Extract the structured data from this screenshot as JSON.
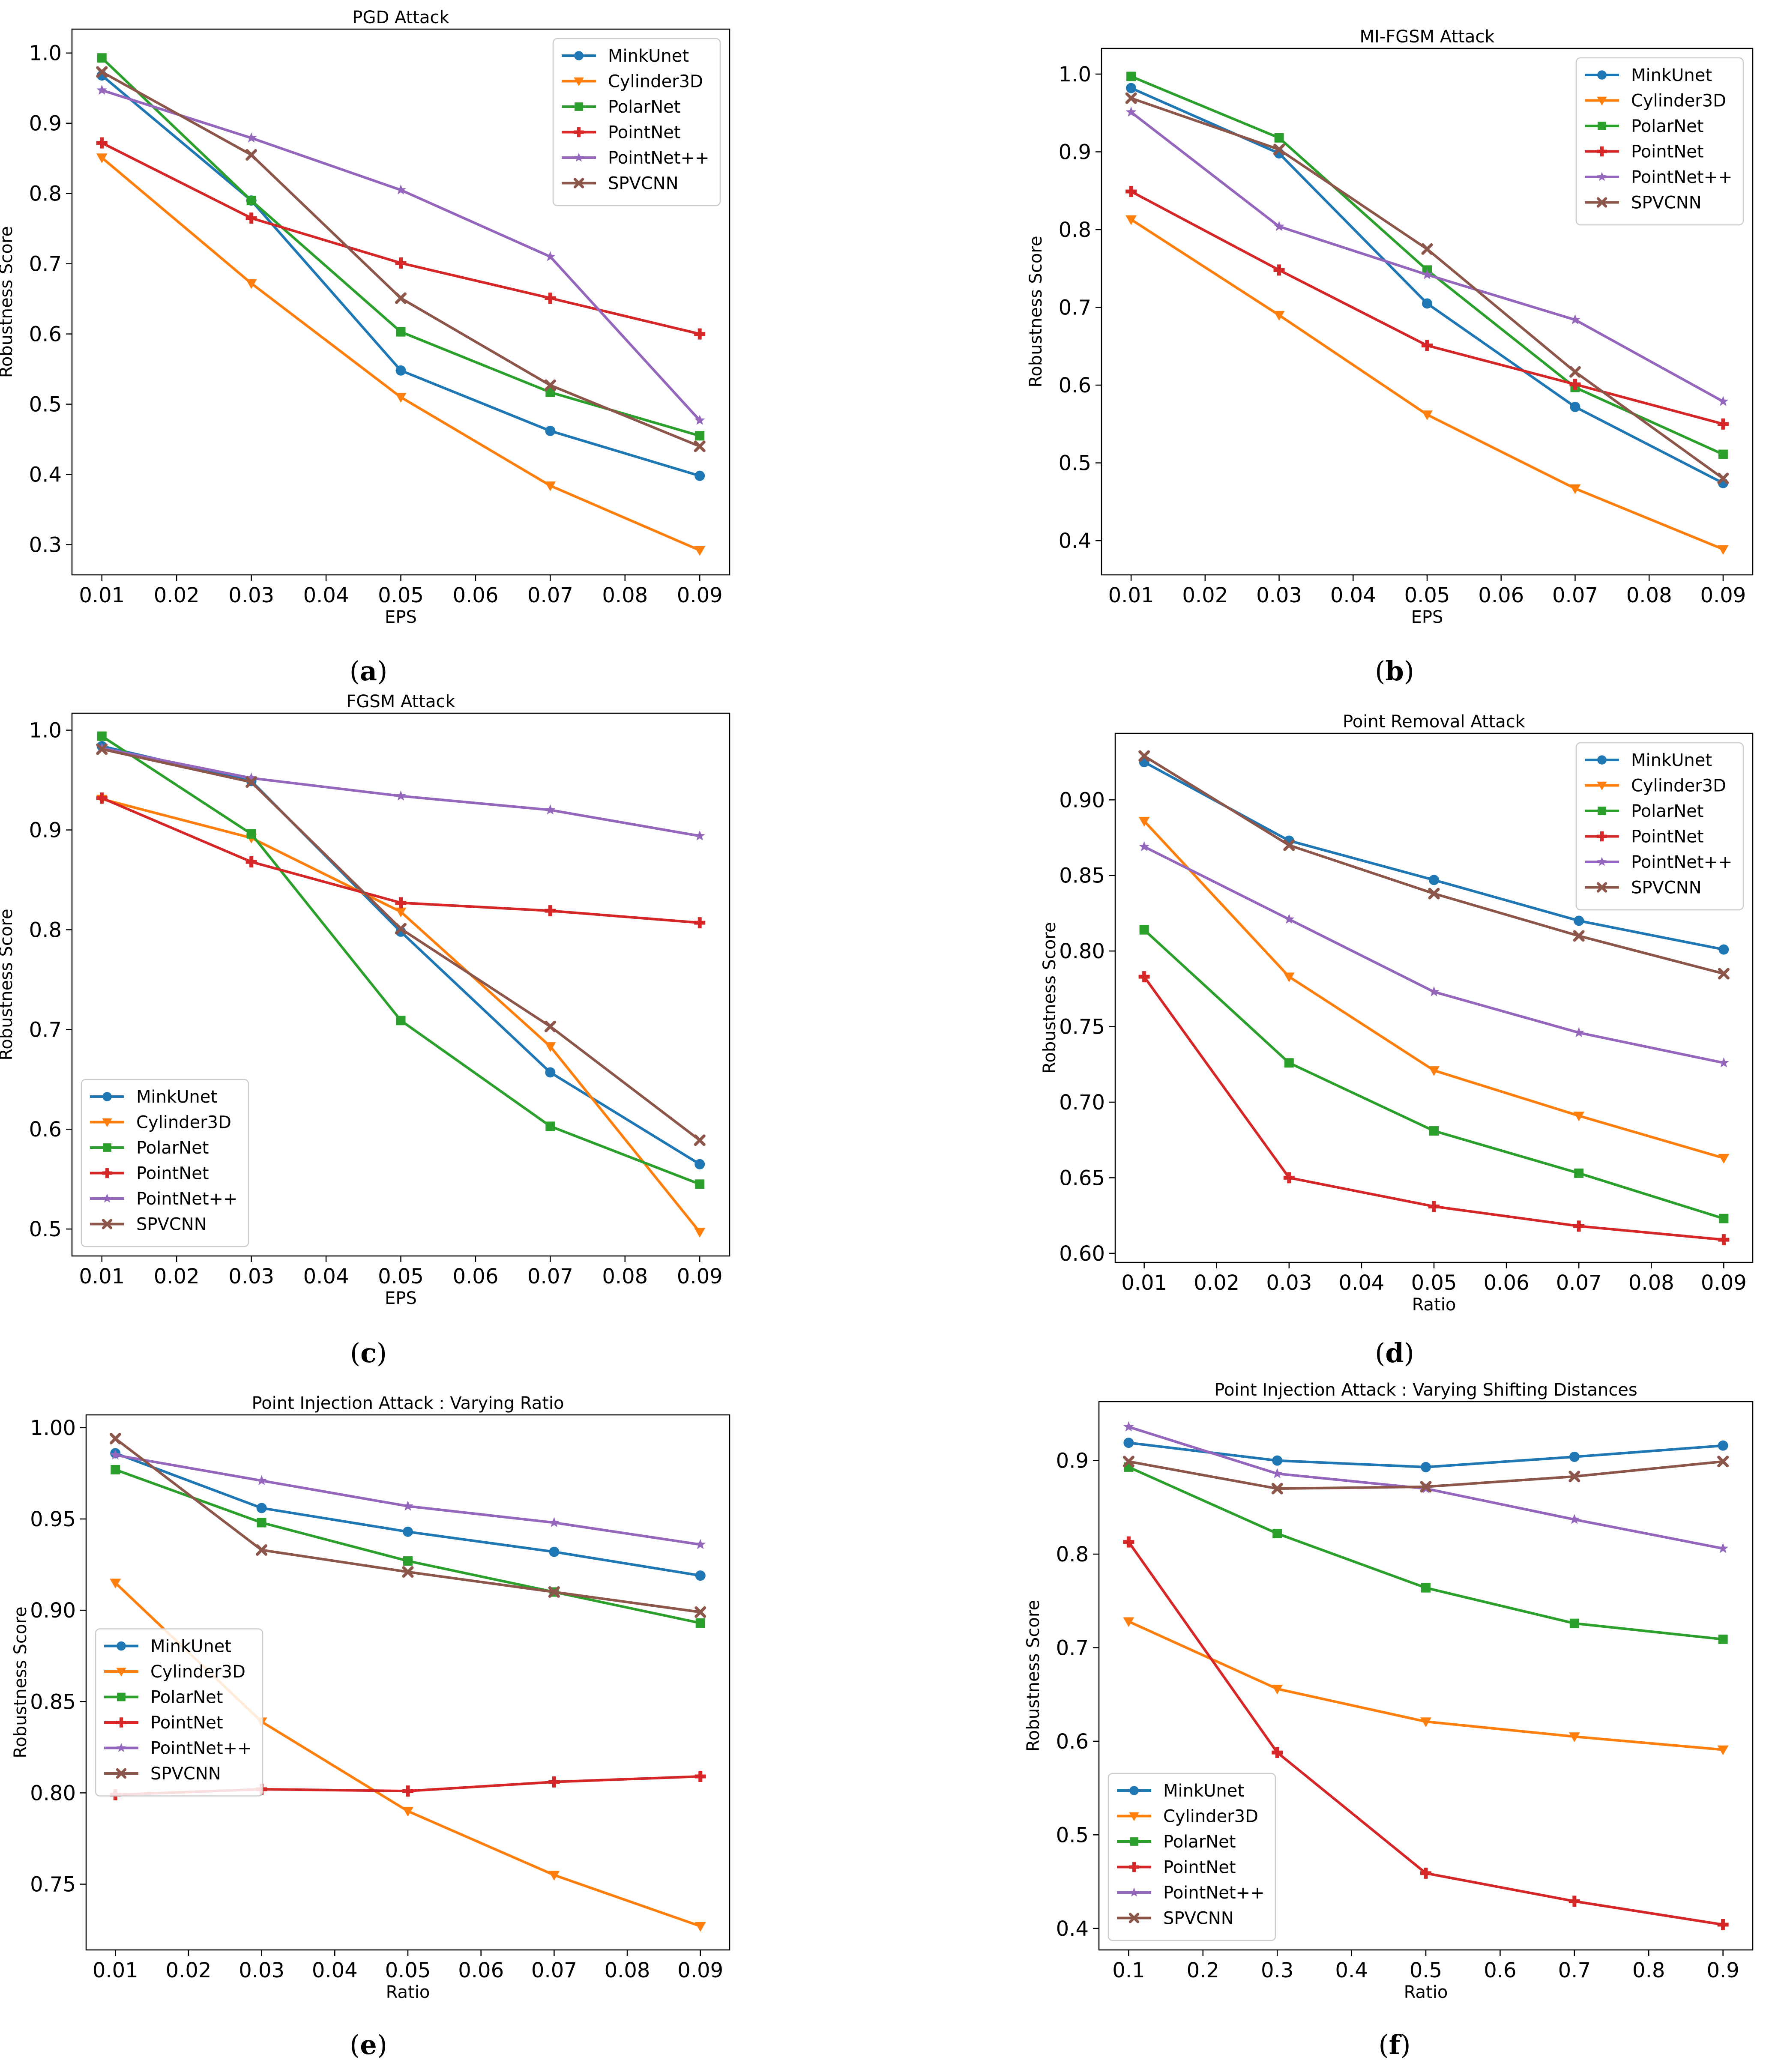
{
  "series_names": [
    "MinkUnet",
    "Cylinder3D",
    "PolarNet",
    "PointNet",
    "PointNet++",
    "SPVCNN"
  ],
  "series_colors": [
    "#1f77b4",
    "#ff7f0e",
    "#2ca02c",
    "#d62728",
    "#9467bd",
    "#8c564b"
  ],
  "series_markers": [
    "circle",
    "triangle-down",
    "square",
    "plus",
    "star",
    "x"
  ],
  "chart_data": [
    {
      "type": "line",
      "caption": "a",
      "title": "PGD Attack",
      "xlabel": "EPS",
      "ylabel": "Robustness Score",
      "x": [
        0.01,
        0.03,
        0.05,
        0.07,
        0.09
      ],
      "xlim": [
        0.006,
        0.094
      ],
      "xticks": [
        "0.01",
        "0.02",
        "0.03",
        "0.04",
        "0.05",
        "0.06",
        "0.07",
        "0.08",
        "0.09"
      ],
      "ylim": [
        0.257,
        1.034
      ],
      "yticks": [
        "0.3",
        "0.4",
        "0.5",
        "0.6",
        "0.7",
        "0.8",
        "0.9",
        "1.0"
      ],
      "legend": "top-right",
      "series": [
        {
          "name": "MinkUnet",
          "values": [
            0.968,
            0.79,
            0.548,
            0.462,
            0.398
          ]
        },
        {
          "name": "Cylinder3D",
          "values": [
            0.851,
            0.672,
            0.51,
            0.384,
            0.292
          ]
        },
        {
          "name": "PolarNet",
          "values": [
            0.993,
            0.79,
            0.603,
            0.517,
            0.455
          ]
        },
        {
          "name": "PointNet",
          "values": [
            0.872,
            0.765,
            0.701,
            0.651,
            0.6
          ]
        },
        {
          "name": "PointNet++",
          "values": [
            0.947,
            0.879,
            0.805,
            0.71,
            0.477
          ]
        },
        {
          "name": "SPVCNN",
          "values": [
            0.973,
            0.855,
            0.651,
            0.527,
            0.44
          ]
        }
      ]
    },
    {
      "type": "line",
      "caption": "b",
      "title": "MI-FGSM Attack",
      "xlabel": "EPS",
      "ylabel": "Robustness Score",
      "x": [
        0.01,
        0.03,
        0.05,
        0.07,
        0.09
      ],
      "xlim": [
        0.006,
        0.094
      ],
      "xticks": [
        "0.01",
        "0.02",
        "0.03",
        "0.04",
        "0.05",
        "0.06",
        "0.07",
        "0.08",
        "0.09"
      ],
      "ylim": [
        0.356,
        1.033
      ],
      "yticks": [
        "0.4",
        "0.5",
        "0.6",
        "0.7",
        "0.8",
        "0.9",
        "1.0"
      ],
      "legend": "top-right",
      "series": [
        {
          "name": "MinkUnet",
          "values": [
            0.982,
            0.898,
            0.705,
            0.572,
            0.474
          ]
        },
        {
          "name": "Cylinder3D",
          "values": [
            0.813,
            0.69,
            0.562,
            0.467,
            0.389
          ]
        },
        {
          "name": "PolarNet",
          "values": [
            0.997,
            0.918,
            0.748,
            0.597,
            0.511
          ]
        },
        {
          "name": "PointNet",
          "values": [
            0.849,
            0.748,
            0.651,
            0.601,
            0.55
          ]
        },
        {
          "name": "PointNet++",
          "values": [
            0.951,
            0.804,
            0.742,
            0.684,
            0.579
          ]
        },
        {
          "name": "SPVCNN",
          "values": [
            0.969,
            0.903,
            0.775,
            0.617,
            0.48
          ]
        }
      ]
    },
    {
      "type": "line",
      "caption": "c",
      "title": "FGSM Attack",
      "xlabel": "EPS",
      "ylabel": "Robustness Score",
      "x": [
        0.01,
        0.03,
        0.05,
        0.07,
        0.09
      ],
      "xlim": [
        0.006,
        0.094
      ],
      "xticks": [
        "0.01",
        "0.02",
        "0.03",
        "0.04",
        "0.05",
        "0.06",
        "0.07",
        "0.08",
        "0.09"
      ],
      "ylim": [
        0.473,
        1.017
      ],
      "yticks": [
        "0.5",
        "0.6",
        "0.7",
        "0.8",
        "0.9",
        "1.0"
      ],
      "legend": "lower-left",
      "series": [
        {
          "name": "MinkUnet",
          "values": [
            0.984,
            0.949,
            0.798,
            0.657,
            0.565
          ]
        },
        {
          "name": "Cylinder3D",
          "values": [
            0.931,
            0.892,
            0.818,
            0.683,
            0.497
          ]
        },
        {
          "name": "PolarNet",
          "values": [
            0.994,
            0.896,
            0.709,
            0.603,
            0.545
          ]
        },
        {
          "name": "PointNet",
          "values": [
            0.932,
            0.868,
            0.827,
            0.819,
            0.807
          ]
        },
        {
          "name": "PointNet++",
          "values": [
            0.982,
            0.952,
            0.934,
            0.92,
            0.894
          ]
        },
        {
          "name": "SPVCNN",
          "values": [
            0.981,
            0.948,
            0.801,
            0.703,
            0.589
          ]
        }
      ]
    },
    {
      "type": "line",
      "caption": "d",
      "title": "Point Removal Attack",
      "xlabel": "Ratio",
      "ylabel": "Robustness Score",
      "x": [
        0.01,
        0.03,
        0.05,
        0.07,
        0.09
      ],
      "xlim": [
        0.006,
        0.094
      ],
      "xticks": [
        "0.01",
        "0.02",
        "0.03",
        "0.04",
        "0.05",
        "0.06",
        "0.07",
        "0.08",
        "0.09"
      ],
      "ylim": [
        0.594,
        0.944
      ],
      "yticks": [
        "0.60",
        "0.65",
        "0.70",
        "0.75",
        "0.80",
        "0.85",
        "0.90"
      ],
      "legend": "top-right",
      "series": [
        {
          "name": "MinkUnet",
          "values": [
            0.925,
            0.873,
            0.847,
            0.82,
            0.801
          ]
        },
        {
          "name": "Cylinder3D",
          "values": [
            0.886,
            0.783,
            0.721,
            0.691,
            0.663
          ]
        },
        {
          "name": "PolarNet",
          "values": [
            0.814,
            0.726,
            0.681,
            0.653,
            0.623
          ]
        },
        {
          "name": "PointNet",
          "values": [
            0.783,
            0.65,
            0.631,
            0.618,
            0.609
          ]
        },
        {
          "name": "PointNet++",
          "values": [
            0.869,
            0.821,
            0.773,
            0.746,
            0.726
          ]
        },
        {
          "name": "SPVCNN",
          "values": [
            0.929,
            0.87,
            0.838,
            0.81,
            0.785
          ]
        }
      ]
    },
    {
      "type": "line",
      "caption": "e",
      "title": "Point Injection Attack : Varying Ratio",
      "xlabel": "Ratio",
      "ylabel": "Robustness Score",
      "x": [
        0.01,
        0.03,
        0.05,
        0.07,
        0.09
      ],
      "xlim": [
        0.006,
        0.094
      ],
      "xticks": [
        "0.01",
        "0.02",
        "0.03",
        "0.04",
        "0.05",
        "0.06",
        "0.07",
        "0.08",
        "0.09"
      ],
      "ylim": [
        0.714,
        1.007
      ],
      "yticks": [
        "0.75",
        "0.80",
        "0.85",
        "0.90",
        "0.95",
        "1.00"
      ],
      "legend": "center-left",
      "series": [
        {
          "name": "MinkUnet",
          "values": [
            0.986,
            0.956,
            0.943,
            0.932,
            0.919
          ]
        },
        {
          "name": "Cylinder3D",
          "values": [
            0.915,
            0.839,
            0.79,
            0.755,
            0.727
          ]
        },
        {
          "name": "PolarNet",
          "values": [
            0.977,
            0.948,
            0.927,
            0.91,
            0.893
          ]
        },
        {
          "name": "PointNet",
          "values": [
            0.799,
            0.802,
            0.801,
            0.806,
            0.809
          ]
        },
        {
          "name": "PointNet++",
          "values": [
            0.985,
            0.971,
            0.957,
            0.948,
            0.936
          ]
        },
        {
          "name": "SPVCNN",
          "values": [
            0.994,
            0.933,
            0.921,
            0.91,
            0.899
          ]
        }
      ]
    },
    {
      "type": "line",
      "caption": "f",
      "title": "Point Injection Attack : Varying Shifting Distances",
      "xlabel": "Ratio",
      "ylabel": "Robustness Score",
      "x": [
        0.1,
        0.3,
        0.5,
        0.7,
        0.9
      ],
      "xlim": [
        0.06,
        0.94
      ],
      "xticks": [
        "0.1",
        "0.2",
        "0.3",
        "0.4",
        "0.5",
        "0.6",
        "0.7",
        "0.8",
        "0.9"
      ],
      "ylim": [
        0.377,
        0.963
      ],
      "yticks": [
        "0.4",
        "0.5",
        "0.6",
        "0.7",
        "0.8",
        "0.9"
      ],
      "legend": "lower-left",
      "series": [
        {
          "name": "MinkUnet",
          "values": [
            0.919,
            0.9,
            0.893,
            0.904,
            0.916
          ]
        },
        {
          "name": "Cylinder3D",
          "values": [
            0.728,
            0.656,
            0.621,
            0.605,
            0.591
          ]
        },
        {
          "name": "PolarNet",
          "values": [
            0.893,
            0.822,
            0.764,
            0.726,
            0.709
          ]
        },
        {
          "name": "PointNet",
          "values": [
            0.813,
            0.588,
            0.459,
            0.429,
            0.404
          ]
        },
        {
          "name": "PointNet++",
          "values": [
            0.936,
            0.886,
            0.87,
            0.837,
            0.806
          ]
        },
        {
          "name": "SPVCNN",
          "values": [
            0.899,
            0.87,
            0.872,
            0.883,
            0.899
          ]
        }
      ]
    }
  ]
}
